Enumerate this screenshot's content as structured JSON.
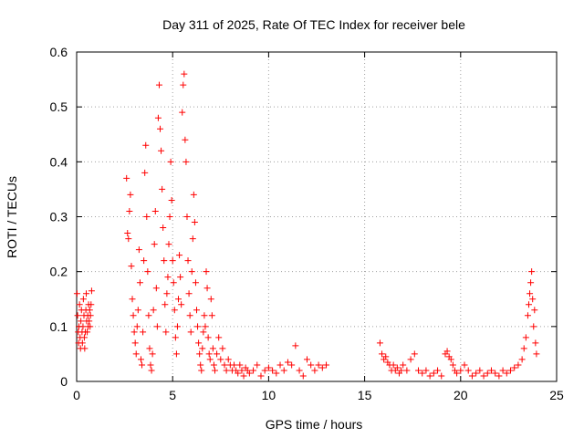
{
  "chart_data": {
    "type": "scatter",
    "title": "Day 311 of 2025, Rate Of TEC Index for receiver bele",
    "xlabel": "GPS time / hours",
    "ylabel": "ROTI / TECUs",
    "xlim": [
      0,
      25
    ],
    "ylim": [
      0,
      0.6
    ],
    "xticks": [
      0,
      5,
      10,
      15,
      20,
      25
    ],
    "yticks": [
      0,
      0.1,
      0.2,
      0.3,
      0.4,
      0.5,
      0.6
    ],
    "xtick_labels": [
      "0",
      "5",
      "10",
      "15",
      "20",
      "25"
    ],
    "ytick_labels": [
      "0",
      "0.1",
      "0.2",
      "0.3",
      "0.4",
      "0.5",
      "0.6"
    ],
    "grid": true,
    "marker": "+",
    "color": "#ff0000",
    "series": [
      {
        "points": [
          [
            0.02,
            0.16
          ],
          [
            0.05,
            0.12
          ],
          [
            0.08,
            0.09
          ],
          [
            0.1,
            0.07
          ],
          [
            0.12,
            0.1
          ],
          [
            0.15,
            0.14
          ],
          [
            0.18,
            0.08
          ],
          [
            0.2,
            0.06
          ],
          [
            0.22,
            0.11
          ],
          [
            0.25,
            0.13
          ],
          [
            0.28,
            0.09
          ],
          [
            0.3,
            0.07
          ],
          [
            0.33,
            0.1
          ],
          [
            0.35,
            0.15
          ],
          [
            0.38,
            0.12
          ],
          [
            0.4,
            0.08
          ],
          [
            0.42,
            0.06
          ],
          [
            0.45,
            0.09
          ],
          [
            0.48,
            0.13
          ],
          [
            0.5,
            0.16
          ],
          [
            0.52,
            0.11
          ],
          [
            0.55,
            0.09
          ],
          [
            0.58,
            0.12
          ],
          [
            0.6,
            0.1
          ],
          [
            0.62,
            0.14
          ],
          [
            0.65,
            0.11
          ],
          [
            0.68,
            0.13
          ],
          [
            0.7,
            0.1
          ],
          [
            0.72,
            0.12
          ],
          [
            0.75,
            0.14
          ],
          [
            0.78,
            0.165
          ],
          [
            2.6,
            0.37
          ],
          [
            2.65,
            0.27
          ],
          [
            2.7,
            0.26
          ],
          [
            2.75,
            0.31
          ],
          [
            2.8,
            0.34
          ],
          [
            2.85,
            0.21
          ],
          [
            2.9,
            0.15
          ],
          [
            2.95,
            0.12
          ],
          [
            3.0,
            0.09
          ],
          [
            3.05,
            0.07
          ],
          [
            3.1,
            0.05
          ],
          [
            3.15,
            0.1
          ],
          [
            3.2,
            0.13
          ],
          [
            3.25,
            0.24
          ],
          [
            3.3,
            0.18
          ],
          [
            3.35,
            0.04
          ],
          [
            3.4,
            0.03
          ],
          [
            3.45,
            0.09
          ],
          [
            3.5,
            0.22
          ],
          [
            3.55,
            0.38
          ],
          [
            3.6,
            0.43
          ],
          [
            3.65,
            0.3
          ],
          [
            3.7,
            0.2
          ],
          [
            3.75,
            0.12
          ],
          [
            3.8,
            0.06
          ],
          [
            3.85,
            0.03
          ],
          [
            3.9,
            0.02
          ],
          [
            3.95,
            0.05
          ],
          [
            4.0,
            0.13
          ],
          [
            4.05,
            0.25
          ],
          [
            4.1,
            0.31
          ],
          [
            4.15,
            0.17
          ],
          [
            4.2,
            0.1
          ],
          [
            4.25,
            0.48
          ],
          [
            4.3,
            0.54
          ],
          [
            4.35,
            0.46
          ],
          [
            4.4,
            0.42
          ],
          [
            4.45,
            0.35
          ],
          [
            4.5,
            0.28
          ],
          [
            4.55,
            0.22
          ],
          [
            4.6,
            0.14
          ],
          [
            4.65,
            0.09
          ],
          [
            4.7,
            0.16
          ],
          [
            4.75,
            0.19
          ],
          [
            4.8,
            0.25
          ],
          [
            4.85,
            0.3
          ],
          [
            4.9,
            0.4
          ],
          [
            4.95,
            0.33
          ],
          [
            5.0,
            0.22
          ],
          [
            5.05,
            0.18
          ],
          [
            5.1,
            0.13
          ],
          [
            5.15,
            0.08
          ],
          [
            5.2,
            0.05
          ],
          [
            5.25,
            0.1
          ],
          [
            5.3,
            0.15
          ],
          [
            5.35,
            0.23
          ],
          [
            5.4,
            0.19
          ],
          [
            5.45,
            0.14
          ],
          [
            5.5,
            0.49
          ],
          [
            5.55,
            0.54
          ],
          [
            5.6,
            0.56
          ],
          [
            5.65,
            0.44
          ],
          [
            5.7,
            0.4
          ],
          [
            5.75,
            0.3
          ],
          [
            5.8,
            0.22
          ],
          [
            5.85,
            0.16
          ],
          [
            5.9,
            0.12
          ],
          [
            5.95,
            0.09
          ],
          [
            6.0,
            0.2
          ],
          [
            6.05,
            0.26
          ],
          [
            6.1,
            0.34
          ],
          [
            6.15,
            0.29
          ],
          [
            6.2,
            0.18
          ],
          [
            6.25,
            0.13
          ],
          [
            6.3,
            0.1
          ],
          [
            6.35,
            0.07
          ],
          [
            6.4,
            0.05
          ],
          [
            6.45,
            0.03
          ],
          [
            6.5,
            0.02
          ],
          [
            6.55,
            0.06
          ],
          [
            6.6,
            0.09
          ],
          [
            6.65,
            0.12
          ],
          [
            6.7,
            0.1
          ],
          [
            6.75,
            0.2
          ],
          [
            6.8,
            0.17
          ],
          [
            6.85,
            0.08
          ],
          [
            6.9,
            0.05
          ],
          [
            6.95,
            0.04
          ],
          [
            7.0,
            0.15
          ],
          [
            7.05,
            0.12
          ],
          [
            7.1,
            0.06
          ],
          [
            7.15,
            0.03
          ],
          [
            7.2,
            0.02
          ],
          [
            7.3,
            0.05
          ],
          [
            7.4,
            0.08
          ],
          [
            7.5,
            0.04
          ],
          [
            7.6,
            0.06
          ],
          [
            7.7,
            0.03
          ],
          [
            7.8,
            0.02
          ],
          [
            7.9,
            0.04
          ],
          [
            8.0,
            0.03
          ],
          [
            8.1,
            0.02
          ],
          [
            8.2,
            0.03
          ],
          [
            8.3,
            0.02
          ],
          [
            8.4,
            0.015
          ],
          [
            8.5,
            0.03
          ],
          [
            8.6,
            0.02
          ],
          [
            8.7,
            0.01
          ],
          [
            8.8,
            0.025
          ],
          [
            8.9,
            0.02
          ],
          [
            9.0,
            0.015
          ],
          [
            9.2,
            0.02
          ],
          [
            9.4,
            0.03
          ],
          [
            9.6,
            0.01
          ],
          [
            9.8,
            0.02
          ],
          [
            10.0,
            0.025
          ],
          [
            10.2,
            0.02
          ],
          [
            10.4,
            0.015
          ],
          [
            10.6,
            0.03
          ],
          [
            10.8,
            0.02
          ],
          [
            11.0,
            0.035
          ],
          [
            11.2,
            0.03
          ],
          [
            11.4,
            0.065
          ],
          [
            11.6,
            0.02
          ],
          [
            11.8,
            0.01
          ],
          [
            12.0,
            0.04
          ],
          [
            12.2,
            0.03
          ],
          [
            12.4,
            0.02
          ],
          [
            12.6,
            0.03
          ],
          [
            12.8,
            0.025
          ],
          [
            13.0,
            0.03
          ],
          [
            15.8,
            0.07
          ],
          [
            15.9,
            0.05
          ],
          [
            16.0,
            0.04
          ],
          [
            16.1,
            0.045
          ],
          [
            16.2,
            0.035
          ],
          [
            16.3,
            0.03
          ],
          [
            16.4,
            0.02
          ],
          [
            16.5,
            0.03
          ],
          [
            16.6,
            0.02
          ],
          [
            16.7,
            0.025
          ],
          [
            16.8,
            0.015
          ],
          [
            16.9,
            0.02
          ],
          [
            17.0,
            0.03
          ],
          [
            17.2,
            0.02
          ],
          [
            17.4,
            0.04
          ],
          [
            17.6,
            0.05
          ],
          [
            17.8,
            0.02
          ],
          [
            18.0,
            0.015
          ],
          [
            18.2,
            0.02
          ],
          [
            18.4,
            0.01
          ],
          [
            18.6,
            0.015
          ],
          [
            18.8,
            0.02
          ],
          [
            19.0,
            0.01
          ],
          [
            19.2,
            0.05
          ],
          [
            19.3,
            0.055
          ],
          [
            19.4,
            0.045
          ],
          [
            19.5,
            0.04
          ],
          [
            19.6,
            0.03
          ],
          [
            19.7,
            0.02
          ],
          [
            19.8,
            0.015
          ],
          [
            20.0,
            0.02
          ],
          [
            20.2,
            0.03
          ],
          [
            20.4,
            0.02
          ],
          [
            20.6,
            0.01
          ],
          [
            20.8,
            0.015
          ],
          [
            21.0,
            0.02
          ],
          [
            21.2,
            0.01
          ],
          [
            21.4,
            0.015
          ],
          [
            21.6,
            0.02
          ],
          [
            21.8,
            0.015
          ],
          [
            22.0,
            0.01
          ],
          [
            22.2,
            0.02
          ],
          [
            22.4,
            0.015
          ],
          [
            22.6,
            0.02
          ],
          [
            22.8,
            0.025
          ],
          [
            23.0,
            0.03
          ],
          [
            23.2,
            0.04
          ],
          [
            23.3,
            0.06
          ],
          [
            23.4,
            0.08
          ],
          [
            23.5,
            0.12
          ],
          [
            23.55,
            0.14
          ],
          [
            23.6,
            0.16
          ],
          [
            23.65,
            0.18
          ],
          [
            23.7,
            0.2
          ],
          [
            23.75,
            0.15
          ],
          [
            23.8,
            0.1
          ],
          [
            23.85,
            0.13
          ],
          [
            23.9,
            0.07
          ],
          [
            23.95,
            0.05
          ]
        ]
      }
    ]
  }
}
